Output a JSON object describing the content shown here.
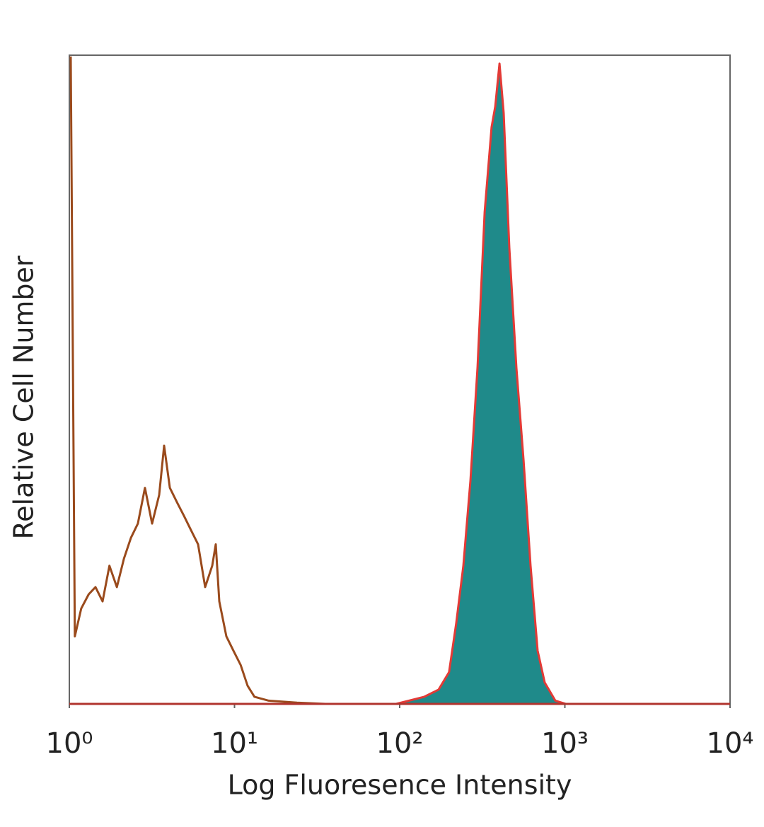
{
  "chart_data": {
    "type": "histogram-line",
    "x_label": "Log Fluoresence Intensity",
    "y_label": "Relative Cell Number",
    "xscale": "log",
    "xlim": [
      1,
      10000
    ],
    "ylim": [
      0,
      100
    ],
    "xticks": [
      {
        "value": 1,
        "label": "10⁰"
      },
      {
        "value": 10,
        "label": "10¹"
      },
      {
        "value": 100,
        "label": "10²"
      },
      {
        "value": 1000,
        "label": "10³"
      },
      {
        "value": 10000,
        "label": "10⁴"
      }
    ],
    "series": [
      {
        "color": "#9a4a1c",
        "filled": false,
        "x": [
          1.02,
          1.08,
          1.18,
          1.31,
          1.44,
          1.59,
          1.75,
          1.94,
          2.14,
          2.36,
          2.6,
          2.87,
          3.17,
          3.5,
          3.75,
          4.06,
          4.48,
          4.94,
          5.45,
          6.02,
          6.64,
          7.33,
          7.7,
          8.09,
          8.93,
          9.85,
          10.9,
          12.0,
          13.2,
          16.1,
          23.9,
          35.5
        ],
        "values": [
          99.8,
          10.4,
          14.7,
          16.9,
          18.0,
          15.8,
          21.3,
          18.0,
          22.4,
          25.6,
          27.8,
          33.3,
          27.8,
          32.2,
          39.8,
          33.3,
          31.1,
          29.0,
          26.8,
          24.6,
          18.0,
          21.3,
          24.6,
          15.8,
          10.4,
          8.2,
          6.0,
          2.8,
          1.1,
          0.5,
          0.2,
          0
        ]
      },
      {
        "color": "#e33a36",
        "fill_color": "#1f8a8a",
        "filled": true,
        "x": [
          95.2,
          141,
          172,
          199,
          220,
          243,
          268,
          296,
          327,
          360,
          379,
          402,
          426,
          461,
          509,
          562,
          620,
          684,
          755,
          875,
          1015
        ],
        "values": [
          0,
          1.1,
          2.2,
          4.9,
          12.5,
          21.3,
          34.4,
          51.8,
          75.8,
          88.9,
          92.1,
          98.7,
          91.1,
          70.3,
          51.8,
          37.6,
          21.3,
          8.2,
          3.3,
          0.5,
          0
        ]
      }
    ]
  }
}
